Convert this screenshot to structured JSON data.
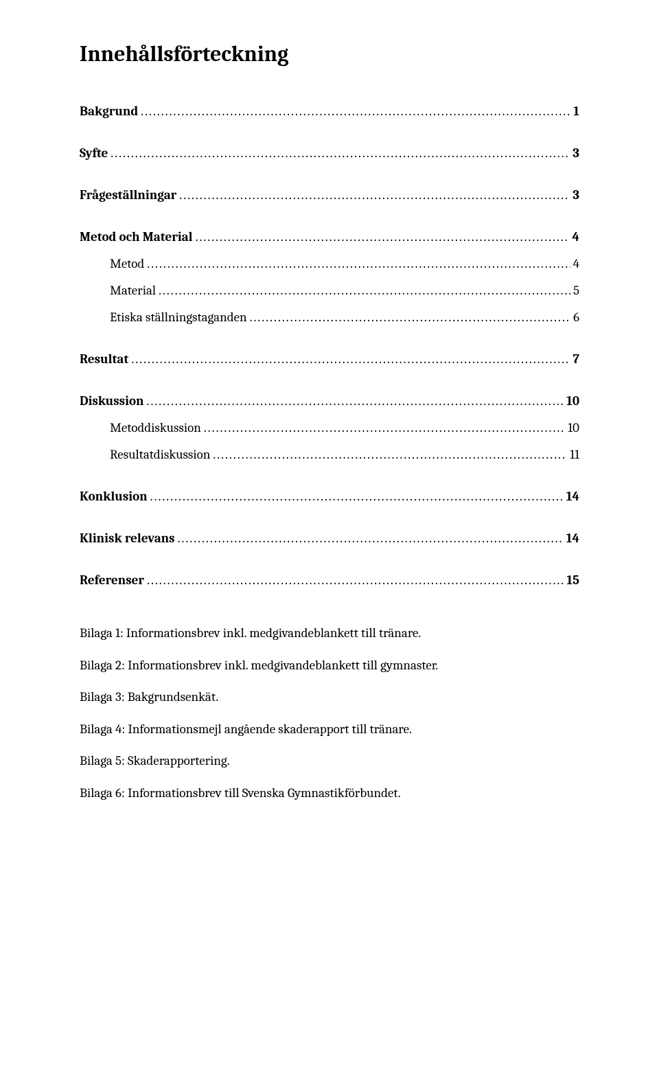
{
  "title": "Innehållsförteckning",
  "toc": [
    {
      "label": "Bakgrund",
      "page": "1",
      "bold": true,
      "indent": false,
      "gap": "lg"
    },
    {
      "label": "Syfte",
      "page": "3",
      "bold": true,
      "indent": false,
      "gap": "lg"
    },
    {
      "label": "Frågeställningar",
      "page": "3",
      "bold": true,
      "indent": false,
      "gap": "lg"
    },
    {
      "label": "Metod och Material",
      "page": "4",
      "bold": true,
      "indent": false,
      "gap": "sm"
    },
    {
      "label": "Metod",
      "page": "4",
      "bold": false,
      "indent": true,
      "gap": "sm"
    },
    {
      "label": "Material",
      "page": "5",
      "bold": false,
      "indent": true,
      "gap": "sm"
    },
    {
      "label": "Etiska ställningstaganden",
      "page": "6",
      "bold": false,
      "indent": true,
      "gap": "med"
    },
    {
      "label": "Resultat",
      "page": "7",
      "bold": true,
      "indent": false,
      "gap": "lg"
    },
    {
      "label": "Diskussion",
      "page": "10",
      "bold": true,
      "indent": false,
      "gap": "sm"
    },
    {
      "label": "Metoddiskussion",
      "page": "10",
      "bold": false,
      "indent": true,
      "gap": "sm"
    },
    {
      "label": "Resultatdiskussion",
      "page": "11",
      "bold": false,
      "indent": true,
      "gap": "med"
    },
    {
      "label": "Konklusion",
      "page": "14",
      "bold": true,
      "indent": false,
      "gap": "lg"
    },
    {
      "label": "Klinisk relevans",
      "page": "14",
      "bold": true,
      "indent": false,
      "gap": "lg"
    },
    {
      "label": "Referenser",
      "page": "15",
      "bold": true,
      "indent": false,
      "gap": "lg"
    }
  ],
  "appendix": [
    "Bilaga 1: Informationsbrev inkl. medgivandeblankett till tränare.",
    "Bilaga 2: Informationsbrev inkl. medgivandeblankett till gymnaster.",
    "Bilaga 3: Bakgrundsenkät.",
    "Bilaga 4: Informationsmejl angående skaderapport till tränare.",
    "Bilaga 5: Skaderapportering.",
    "Bilaga 6: Informationsbrev till Svenska Gymnastikförbundet."
  ],
  "leaderDots": "...................................................................................................................................................................................................."
}
